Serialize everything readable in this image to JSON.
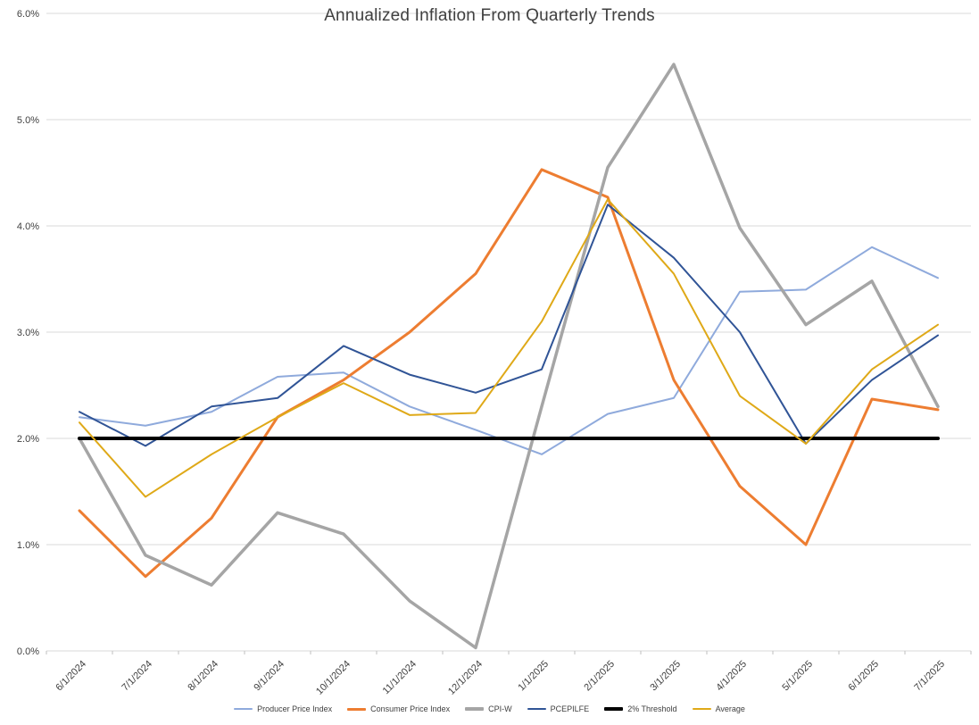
{
  "chart_data": {
    "type": "line",
    "title": "Annualized Inflation From Quarterly Trends",
    "xlabel": "",
    "ylabel": "",
    "grid": true,
    "legend_position": "bottom",
    "ylim": [
      0,
      6
    ],
    "ytick_step": 1,
    "ytick_labels": [
      "0.0%",
      "1.0%",
      "2.0%",
      "3.0%",
      "4.0%",
      "5.0%",
      "6.0%"
    ],
    "categories": [
      "6/1/2024",
      "7/1/2024",
      "8/1/2024",
      "9/1/2024",
      "10/1/2024",
      "11/1/2024",
      "12/1/2024",
      "1/1/2025",
      "2/1/2025",
      "3/1/2025",
      "4/1/2025",
      "5/1/2025",
      "6/1/2025",
      "7/1/2025"
    ],
    "series": [
      {
        "name": "Producer Price Index",
        "color": "#8FAADC",
        "width": 2,
        "values": [
          2.2,
          2.12,
          2.25,
          2.58,
          2.62,
          2.3,
          2.08,
          1.85,
          2.23,
          2.38,
          3.38,
          3.4,
          3.8,
          3.51
        ]
      },
      {
        "name": "Consumer Price Index",
        "color": "#ED7D31",
        "width": 3,
        "values": [
          1.32,
          0.7,
          1.25,
          2.2,
          2.55,
          3.0,
          3.55,
          4.53,
          4.27,
          2.55,
          1.55,
          1.0,
          2.37,
          2.27
        ]
      },
      {
        "name": "CPI-W",
        "color": "#A5A5A5",
        "width": 3.5,
        "values": [
          2.0,
          0.9,
          0.62,
          1.3,
          1.1,
          0.47,
          0.03,
          2.3,
          4.55,
          5.52,
          3.98,
          3.07,
          3.48,
          2.3
        ]
      },
      {
        "name": "PCEPILFE",
        "color": "#305496",
        "width": 2,
        "values": [
          2.25,
          1.93,
          2.3,
          2.38,
          2.87,
          2.6,
          2.43,
          2.65,
          4.2,
          3.7,
          3.0,
          1.95,
          2.55,
          2.97
        ]
      },
      {
        "name": "2% Threshold",
        "color": "#000000",
        "width": 4,
        "values": [
          2.0,
          2.0,
          2.0,
          2.0,
          2.0,
          2.0,
          2.0,
          2.0,
          2.0,
          2.0,
          2.0,
          2.0,
          2.0,
          2.0
        ]
      },
      {
        "name": "Average",
        "color": "#DFA918",
        "width": 2,
        "values": [
          2.15,
          1.45,
          1.85,
          2.2,
          2.52,
          2.22,
          2.24,
          3.1,
          4.25,
          3.55,
          2.4,
          1.95,
          2.65,
          3.07
        ]
      }
    ],
    "gridline_color": "#D9D9D9",
    "axis_tick_color": "#BFBFBF"
  }
}
